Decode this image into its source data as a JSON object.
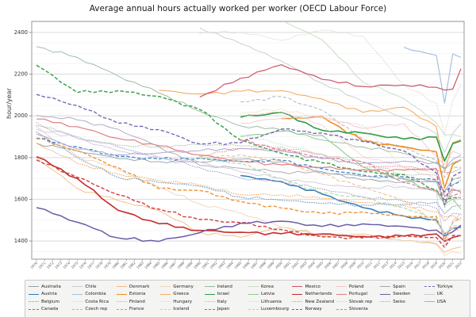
{
  "title": "Average annual hours actually worked per worker (OECD Labour Force)",
  "chart_data": {
    "type": "line",
    "title": "Average annual hours actually worked per worker (OECD Labour Force)",
    "xlabel": "",
    "ylabel": "hour/year",
    "x_start": 1970,
    "x_end": 2022,
    "x_tick_years": [
      1970,
      1971,
      1972,
      1973,
      1974,
      1975,
      1976,
      1977,
      1978,
      1979,
      1980,
      1981,
      1982,
      1983,
      1984,
      1985,
      1986,
      1987,
      1988,
      1989,
      1990,
      1991,
      1992,
      1993,
      1994,
      1995,
      1996,
      1997,
      1998,
      1999,
      2000,
      2001,
      2002,
      2003,
      2004,
      2005,
      2006,
      2007,
      2008,
      2009,
      2010,
      2011,
      2012,
      2013,
      2014,
      2015,
      2016,
      2017,
      2018,
      2019,
      2020,
      2021,
      2022
    ],
    "ylim": [
      1313,
      2453
    ],
    "yticks_major": [
      1400,
      1600,
      1800,
      2000,
      2200,
      2400
    ],
    "yticks_minor_step": 50,
    "grid": true,
    "legend_position": "bottom",
    "anchor_years": [
      1970,
      1975,
      1980,
      1985,
      1990,
      1995,
      2000,
      2005,
      2010,
      2015,
      2019,
      2020,
      2021,
      2022
    ],
    "series": [
      {
        "name": "Australia",
        "color": "#8ea0ad",
        "dash": "solid",
        "w": 0.9,
        "values": [
          1869,
          1832,
          1795,
          1781,
          1779,
          1792,
          1780,
          1732,
          1692,
          1683,
          1683,
          1639,
          1694,
          1707
        ]
      },
      {
        "name": "Austria",
        "color": "#2e7ab8",
        "dash": "solid",
        "w": 1.5,
        "values": [
          null,
          null,
          null,
          null,
          null,
          1714,
          1685,
          1625,
          1560,
          1520,
          1501,
          1434,
          1461,
          1466
        ]
      },
      {
        "name": "Belgium",
        "color": "#7d9bbf",
        "dash": "dotted",
        "w": 1.1,
        "values": [
          1922,
          1800,
          1705,
          1681,
          1663,
          1611,
          1595,
          1580,
          1572,
          1576,
          1586,
          1531,
          1566,
          1571
        ]
      },
      {
        "name": "Canada",
        "color": "#3e86c9",
        "dash": "dashed",
        "w": 1.3,
        "values": [
          1893,
          1852,
          1806,
          1793,
          1797,
          1781,
          1787,
          1747,
          1716,
          1706,
          1693,
          1634,
          1670,
          1686
        ]
      },
      {
        "name": "Chile",
        "color": "#c6cbd0",
        "dash": "solid",
        "w": 0.9,
        "values": [
          null,
          null,
          null,
          null,
          2422,
          2347,
          2263,
          2157,
          2069,
          1990,
          1914,
          1825,
          1916,
          1963
        ]
      },
      {
        "name": "Colombia",
        "color": "#a9c0dd",
        "dash": "solid",
        "w": 1.2,
        "values": [
          null,
          null,
          null,
          null,
          null,
          null,
          null,
          null,
          null,
          2329,
          2290,
          2061,
          2297,
          2280
        ]
      },
      {
        "name": "Costa Rica",
        "color": "#dbd8d2",
        "dash": "dotted",
        "w": 1.0,
        "values": [
          null,
          null,
          null,
          null,
          2396,
          2402,
          2362,
          2411,
          2382,
          2148,
          2060,
          1913,
          2073,
          2149
        ]
      },
      {
        "name": "Czech rep",
        "color": "#b3b6ba",
        "dash": "dashed",
        "w": 1.0,
        "values": [
          null,
          null,
          null,
          null,
          null,
          2067,
          2092,
          2027,
          1889,
          1847,
          1788,
          1705,
          1753,
          1754
        ]
      },
      {
        "name": "Denmark",
        "color": "#f1bc83",
        "dash": "solid",
        "w": 0.9,
        "values": [
          1800,
          1652,
          1593,
          1546,
          1441,
          1418,
          1466,
          1424,
          1434,
          1401,
          1387,
          1346,
          1363,
          1372
        ]
      },
      {
        "name": "Estonia",
        "color": "#ef8d1f",
        "dash": "solid",
        "w": 1.6,
        "values": [
          null,
          null,
          null,
          null,
          null,
          null,
          1987,
          1996,
          1879,
          1852,
          1827,
          1654,
          1767,
          1790
        ]
      },
      {
        "name": "Finland",
        "color": "#f0a75e",
        "dash": "dotted",
        "w": 1.0,
        "values": [
          1869,
          1772,
          1721,
          1691,
          1668,
          1622,
          1621,
          1605,
          1584,
          1570,
          1540,
          1515,
          1522,
          1498
        ]
      },
      {
        "name": "France",
        "color": "#ee9336",
        "dash": "dashed",
        "w": 1.4,
        "values": [
          1891,
          1833,
          1752,
          1651,
          1642,
          1590,
          1558,
          1532,
          1540,
          1519,
          1518,
          1403,
          1490,
          1511
        ]
      },
      {
        "name": "Germany",
        "color": "#ecd6bc",
        "dash": "solid",
        "w": 0.9,
        "values": [
          1948,
          1808,
          1742,
          1658,
          1578,
          1534,
          1466,
          1432,
          1426,
          1401,
          1383,
          1332,
          1349,
          1341
        ]
      },
      {
        "name": "Greece",
        "color": "#f5ad64",
        "dash": "solid",
        "w": 1.1,
        "values": [
          null,
          null,
          null,
          2123,
          2105,
          2118,
          2121,
          2081,
          2017,
          2042,
          1949,
          1728,
          1872,
          1886
        ]
      },
      {
        "name": "Hungary",
        "color": "#ead9bd",
        "dash": "dotted",
        "w": 1.0,
        "values": [
          null,
          null,
          null,
          null,
          null,
          2012,
          2033,
          1986,
          1955,
          1749,
          1726,
          1660,
          1697,
          1700
        ]
      },
      {
        "name": "Iceland",
        "color": "#f4c694",
        "dash": "dashed",
        "w": 1.2,
        "values": [
          null,
          null,
          null,
          null,
          1803,
          1813,
          1783,
          1720,
          1660,
          1595,
          1490,
          1435,
          1461,
          1449
        ]
      },
      {
        "name": "Ireland",
        "color": "#97b89b",
        "dash": "solid",
        "w": 0.9,
        "values": [
          2332,
          2281,
          2191,
          2110,
          2022,
          1952,
          1933,
          1884,
          1851,
          1820,
          1772,
          1746,
          1775,
          1789
        ]
      },
      {
        "name": "Israel",
        "color": "#2f9e41",
        "dash": "solid",
        "w": 1.6,
        "values": [
          null,
          null,
          null,
          null,
          null,
          1994,
          2017,
          1931,
          1918,
          1889,
          1898,
          1783,
          1867,
          1880
        ]
      },
      {
        "name": "Italy",
        "color": "#aebfae",
        "dash": "dotted",
        "w": 1.0,
        "values": [
          1969,
          1891,
          1860,
          1851,
          1862,
          1856,
          1850,
          1815,
          1777,
          1718,
          1715,
          1559,
          1669,
          1694
        ]
      },
      {
        "name": "Japan",
        "color": "#3da24b",
        "dash": "dashed",
        "w": 1.5,
        "values": [
          2243,
          2112,
          2121,
          2093,
          2031,
          1884,
          1821,
          1775,
          1733,
          1719,
          1644,
          1598,
          1607,
          1607
        ]
      },
      {
        "name": "Korea",
        "color": "#c6e0c0",
        "dash": "solid",
        "w": 1.0,
        "values": [
          null,
          null,
          null,
          null,
          null,
          null,
          2458,
          2364,
          2163,
          2083,
          1967,
          1908,
          1910,
          1901
        ]
      },
      {
        "name": "Latvia",
        "color": "#8fcc8f",
        "dash": "solid",
        "w": 1.1,
        "values": [
          null,
          null,
          null,
          null,
          null,
          1900,
          1926,
          1907,
          1755,
          1695,
          1635,
          1577,
          1601,
          1553
        ]
      },
      {
        "name": "Lithuania",
        "color": "#cfe4c8",
        "dash": "dotted",
        "w": 1.0,
        "values": [
          null,
          null,
          null,
          null,
          null,
          1908,
          1864,
          1817,
          1698,
          1660,
          1635,
          1595,
          1620,
          1604
        ]
      },
      {
        "name": "Luxembourg",
        "color": "#b2d8ab",
        "dash": "dashed",
        "w": 1.2,
        "values": [
          null,
          null,
          null,
          null,
          1796,
          1771,
          1700,
          1630,
          1609,
          1560,
          1506,
          1428,
          1473,
          1473
        ]
      },
      {
        "name": "Mexico",
        "color": "#cf5368",
        "dash": "solid",
        "w": 1.2,
        "values": [
          null,
          null,
          null,
          null,
          2090,
          2180,
          2245,
          2175,
          2141,
          2148,
          2137,
          2124,
          2128,
          2226
        ]
      },
      {
        "name": "Netherlands",
        "color": "#c62a2a",
        "dash": "solid",
        "w": 1.6,
        "values": [
          1804,
          1700,
          1547,
          1483,
          1451,
          1442,
          1435,
          1434,
          1421,
          1424,
          1434,
          1399,
          1417,
          1427
        ]
      },
      {
        "name": "New Zealand",
        "color": "#e08d8d",
        "dash": "dotted",
        "w": 1.0,
        "values": [
          null,
          null,
          null,
          null,
          1809,
          1843,
          1836,
          1815,
          1755,
          1757,
          1739,
          1729,
          1730,
          1748
        ]
      },
      {
        "name": "Norway",
        "color": "#d23d3d",
        "dash": "dashed",
        "w": 1.4,
        "values": [
          1789,
          1705,
          1622,
          1553,
          1503,
          1488,
          1455,
          1420,
          1415,
          1424,
          1417,
          1369,
          1427,
          1425
        ]
      },
      {
        "name": "Poland",
        "color": "#f3c6ce",
        "dash": "solid",
        "w": 0.9,
        "values": [
          null,
          null,
          null,
          null,
          null,
          1965,
          1988,
          1994,
          1940,
          1963,
          1806,
          1766,
          1830,
          1815
        ]
      },
      {
        "name": "Portugal",
        "color": "#e07e85",
        "dash": "solid",
        "w": 1.2,
        "values": [
          1985,
          1948,
          1892,
          1857,
          1812,
          1783,
          1765,
          1752,
          1742,
          1740,
          1748,
          1613,
          1649,
          1635
        ]
      },
      {
        "name": "Slovak rep",
        "color": "#efc0c8",
        "dash": "dotted",
        "w": 1.0,
        "values": [
          null,
          null,
          null,
          null,
          null,
          2001,
          2017,
          1957,
          1805,
          1754,
          1695,
          1572,
          1583,
          1622
        ]
      },
      {
        "name": "Slovenia",
        "color": "#e27b8e",
        "dash": "dashed",
        "w": 1.2,
        "values": [
          null,
          null,
          null,
          null,
          null,
          1883,
          1840,
          1800,
          1779,
          1680,
          1640,
          1595,
          1618,
          1630
        ]
      },
      {
        "name": "Spain",
        "color": "#a8a5b4",
        "dash": "solid",
        "w": 0.9,
        "values": [
          2003,
          1981,
          1936,
          1852,
          1762,
          1749,
          1731,
          1726,
          1710,
          1700,
          1686,
          1577,
          1641,
          1644
        ]
      },
      {
        "name": "Sweden",
        "color": "#6a5ca8",
        "dash": "solid",
        "w": 1.5,
        "values": [
          1560,
          1490,
          1415,
          1398,
          1440,
          1485,
          1495,
          1470,
          1482,
          1470,
          1452,
          1424,
          1444,
          1475
        ]
      },
      {
        "name": "Swiss",
        "color": "#a79fc2",
        "dash": "dotted",
        "w": 1.0,
        "values": [
          1955,
          1900,
          1852,
          1801,
          1752,
          1702,
          1681,
          1650,
          1612,
          1590,
          1557,
          1495,
          1533,
          1529
        ]
      },
      {
        "name": "Türkiye",
        "color": "#7a68b4",
        "dash": "dashed",
        "w": 1.4,
        "values": [
          2103,
          2049,
          1965,
          1934,
          1866,
          1871,
          1937,
          1918,
          1877,
          1832,
          1726,
          1572,
          1710,
          1732
        ]
      },
      {
        "name": "UK",
        "color": "#cfc8e2",
        "dash": "solid",
        "w": 0.9,
        "values": [
          1937,
          1892,
          1832,
          1801,
          1779,
          1731,
          1700,
          1673,
          1652,
          1661,
          1637,
          1367,
          1497,
          1532
        ]
      },
      {
        "name": "USA",
        "color": "#b3a6d0",
        "dash": "solid",
        "w": 1.0,
        "values": [
          1912,
          1841,
          1813,
          1822,
          1833,
          1844,
          1832,
          1794,
          1772,
          1783,
          1777,
          1750,
          1791,
          1811
        ]
      }
    ],
    "legend_columns": [
      [
        "Australia",
        "Austria",
        "Belgium",
        "Canada"
      ],
      [
        "Chile",
        "Colombia",
        "Costa Rica",
        "Czech rep"
      ],
      [
        "Denmark",
        "Estonia",
        "Finland",
        "France"
      ],
      [
        "Germany",
        "Greece",
        "Hungary",
        "Iceland"
      ],
      [
        "Ireland",
        "Israel",
        "Italy",
        "Japan"
      ],
      [
        "Korea",
        "Latvia",
        "Lithuania",
        "Luxembourg"
      ],
      [
        "Mexico",
        "Netherlands",
        "New Zealand",
        "Norway"
      ],
      [
        "Poland",
        "Portugal",
        "Slovak rep",
        "Slovenia"
      ],
      [
        "Spain",
        "Sweden",
        "Swiss"
      ],
      [
        "Türkiye",
        "UK",
        "USA"
      ]
    ]
  }
}
